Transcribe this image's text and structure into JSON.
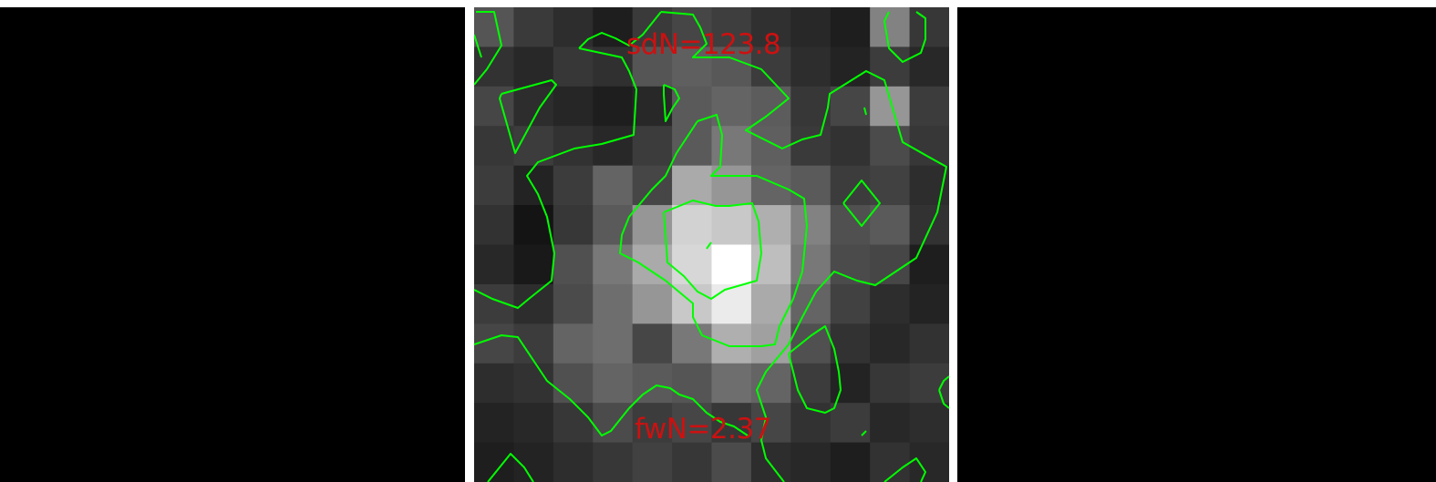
{
  "image": {
    "labels": {
      "top": "sdN=123.8",
      "bottom": "fwN=2.37"
    },
    "colors": {
      "background": "#000000",
      "frame": "#ffffff",
      "contour": "#00ff00",
      "label": "#cc1111"
    },
    "pixel_grid": {
      "rows": 12,
      "cols": 12,
      "gray": [
        [
          85,
          58,
          45,
          30,
          58,
          70,
          62,
          48,
          40,
          30,
          130,
          55
        ],
        [
          50,
          40,
          55,
          48,
          85,
          95,
          88,
          60,
          45,
          35,
          60,
          40
        ],
        [
          70,
          45,
          38,
          30,
          40,
          90,
          100,
          92,
          55,
          70,
          150,
          60
        ],
        [
          55,
          60,
          50,
          40,
          60,
          90,
          120,
          95,
          58,
          50,
          75,
          55
        ],
        [
          60,
          35,
          60,
          100,
          70,
          170,
          150,
          100,
          90,
          60,
          65,
          45
        ],
        [
          50,
          20,
          55,
          90,
          150,
          210,
          200,
          175,
          130,
          80,
          90,
          50
        ],
        [
          40,
          25,
          80,
          120,
          170,
          215,
          255,
          190,
          120,
          75,
          70,
          30
        ],
        [
          60,
          45,
          75,
          110,
          150,
          200,
          235,
          170,
          100,
          65,
          45,
          35
        ],
        [
          70,
          60,
          100,
          110,
          70,
          120,
          175,
          160,
          80,
          50,
          40,
          50
        ],
        [
          45,
          50,
          80,
          100,
          90,
          85,
          110,
          100,
          60,
          35,
          55,
          60
        ],
        [
          35,
          40,
          55,
          75,
          60,
          70,
          55,
          70,
          50,
          60,
          40,
          45
        ],
        [
          30,
          35,
          45,
          55,
          65,
          55,
          75,
          45,
          40,
          30,
          50,
          40
        ]
      ]
    }
  }
}
